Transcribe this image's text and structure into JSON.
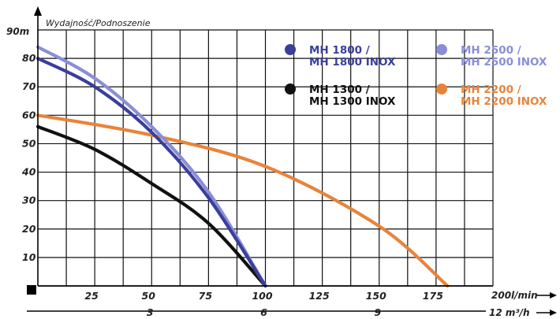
{
  "chart_data": {
    "type": "line",
    "title": "",
    "ylabel": "Wydajność/Podnoszenie",
    "y_top_label": "90m",
    "x_end_label": "200l/min",
    "x2_end_label": "12 m³/h",
    "ylim": [
      0,
      90
    ],
    "xlim": [
      0,
      200
    ],
    "y_ticks": [
      "10",
      "20",
      "30",
      "40",
      "50",
      "60",
      "70",
      "80"
    ],
    "x_ticks": [
      "25",
      "50",
      "75",
      "100",
      "125",
      "150",
      "175"
    ],
    "x2_ticks": [
      "3",
      "6",
      "9"
    ],
    "grid": true,
    "legend_position": "top-right",
    "series": [
      {
        "name": "MH 1800 / MH 1800 INOX",
        "line1": "MH 1800 /",
        "line2": "MH 1800 INOX",
        "color": "#3a3f9a",
        "x": [
          0,
          25,
          50,
          75,
          100
        ],
        "y": [
          80,
          70,
          54,
          31,
          0
        ]
      },
      {
        "name": "MH 2500 / MH 2500 INOX",
        "line1": "MH 2500 /",
        "line2": "MH 2500 INOX",
        "color": "#8a8ed8",
        "x": [
          0,
          25,
          50,
          75,
          100
        ],
        "y": [
          84,
          73,
          56,
          33,
          0
        ]
      },
      {
        "name": "MH 1300 / MH 1300 INOX",
        "line1": "MH 1300 /",
        "line2": "MH 1300 INOX",
        "color": "#111111",
        "x": [
          0,
          25,
          50,
          75,
          100
        ],
        "y": [
          56,
          48,
          36,
          22,
          0
        ]
      },
      {
        "name": "MH 2200 / MH 2200 INOX",
        "line1": "MH 2200 /",
        "line2": "MH 2200 INOX",
        "color": "#e8843a",
        "x": [
          0,
          50,
          100,
          150,
          180
        ],
        "y": [
          60,
          53,
          42,
          21,
          0
        ]
      }
    ]
  }
}
